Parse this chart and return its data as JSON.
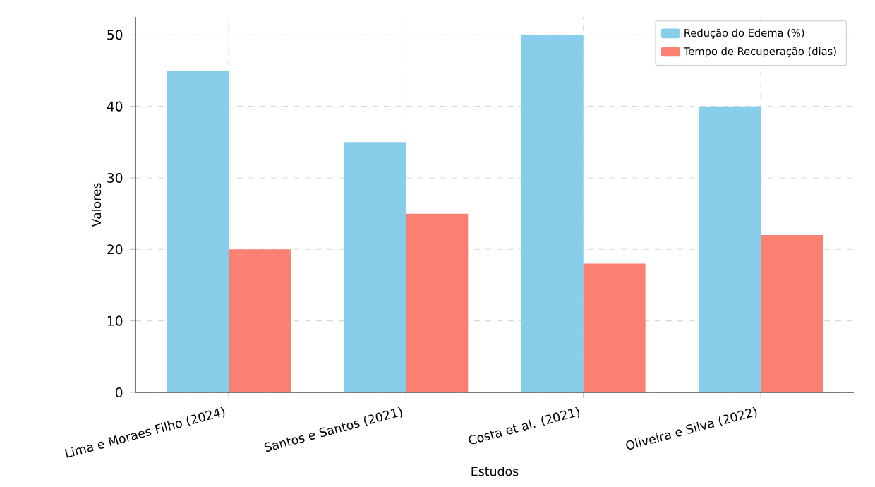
{
  "chart_data": {
    "type": "bar",
    "xlabel": "Estudos",
    "ylabel": "Valores",
    "categories": [
      "Lima e Moraes Filho (2024)",
      "Santos e Santos (2021)",
      "Costa et al. (2021)",
      "Oliveira e Silva (2022)"
    ],
    "series": [
      {
        "name": "Redução do Edema (%)",
        "color": "#87ceeb",
        "values": [
          45,
          35,
          50,
          40
        ]
      },
      {
        "name": "Tempo de Recuperação (dias)",
        "color": "#fa8072",
        "values": [
          20,
          25,
          18,
          22
        ]
      }
    ],
    "ylim": [
      0,
      52.5
    ],
    "yticks": [
      0,
      10,
      20,
      30,
      40,
      50
    ],
    "grid": true,
    "legend": "top right"
  }
}
